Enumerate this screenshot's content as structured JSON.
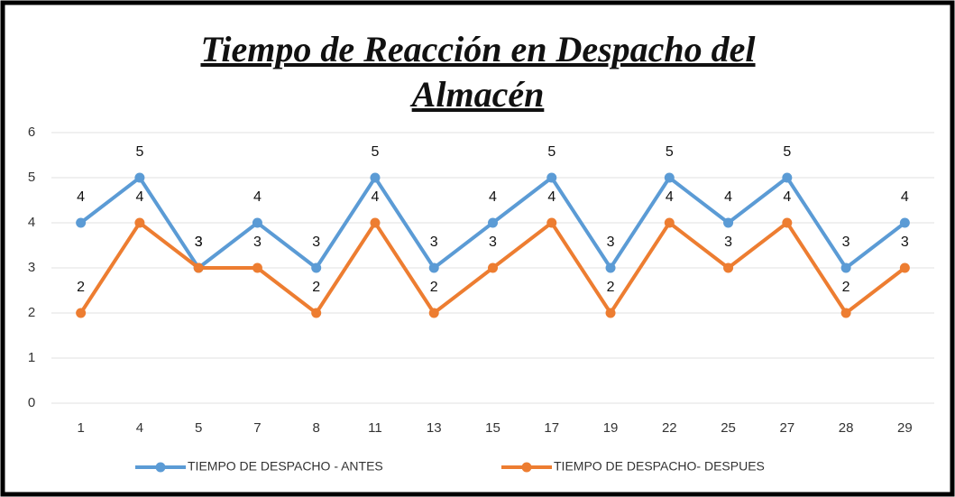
{
  "chart_data": {
    "type": "line",
    "title": "Tiempo de Reacción en Despacho del Almacén",
    "categories": [
      1,
      4,
      5,
      7,
      8,
      11,
      13,
      15,
      17,
      19,
      22,
      25,
      27,
      28,
      29
    ],
    "series": [
      {
        "name": "TIEMPO DE DESPACHO - ANTES",
        "color": "#5b9bd5",
        "values": [
          4,
          5,
          3,
          4,
          3,
          5,
          3,
          4,
          5,
          3,
          5,
          4,
          5,
          3,
          4
        ]
      },
      {
        "name": "TIEMPO DE DESPACHO- DESPUES",
        "color": "#ed7d31",
        "values": [
          2,
          4,
          3,
          3,
          2,
          4,
          2,
          3,
          4,
          2,
          4,
          3,
          4,
          2,
          3
        ]
      }
    ],
    "ylim": [
      0,
      6
    ],
    "yticks": [
      0,
      1,
      2,
      3,
      4,
      5,
      6
    ],
    "grid": true,
    "legend": "bottom"
  }
}
